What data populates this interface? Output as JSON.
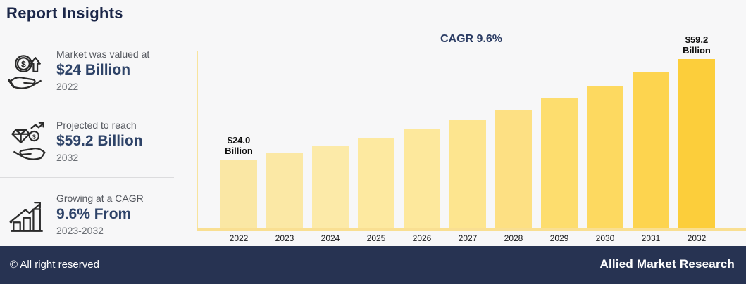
{
  "header": {
    "title": "Report Insights"
  },
  "sidebar": {
    "items": [
      {
        "icon": "hand-coin-arrow-icon",
        "label": "Market was valued at",
        "value": "$24 Billion",
        "period": "2022"
      },
      {
        "icon": "hand-gem-coin-icon",
        "label": "Projected to reach",
        "value": "$59.2 Billion",
        "period": "2032"
      },
      {
        "icon": "growth-bars-arrow-icon",
        "label": "Growing at a CAGR",
        "value": "9.6% From",
        "period": "2023-2032"
      }
    ]
  },
  "chart_data": {
    "type": "bar",
    "title": "CAGR 9.6%",
    "categories": [
      "2022",
      "2023",
      "2024",
      "2025",
      "2026",
      "2027",
      "2028",
      "2029",
      "2030",
      "2031",
      "2032"
    ],
    "values": [
      24.0,
      26.3,
      28.8,
      31.6,
      34.6,
      37.9,
      41.6,
      45.6,
      49.9,
      54.7,
      59.2
    ],
    "ylim": [
      0,
      59.2
    ],
    "grid": false,
    "legend": "none",
    "bar_colors": [
      "#FAE7A4",
      "#FBE8A5",
      "#FCEAA8",
      "#FDE9A0",
      "#FDE89C",
      "#FDE58F",
      "#FDE083",
      "#FDDD6E",
      "#FDD960",
      "#FDD44F",
      "#FCCE3B"
    ],
    "annotations": [
      {
        "index": 0,
        "text": "$24.0\nBillion"
      },
      {
        "index": 10,
        "text": "$59.2\nBillion"
      }
    ]
  },
  "footer": {
    "left": "© All right reserved",
    "right": "Allied Market Research"
  },
  "colors": {
    "accent_navy": "#2E4368",
    "title_navy": "#1C2749",
    "footer_navy": "#273352",
    "axis_yellow": "#F9DF92",
    "highlight_gold": "#FCCE3B"
  }
}
